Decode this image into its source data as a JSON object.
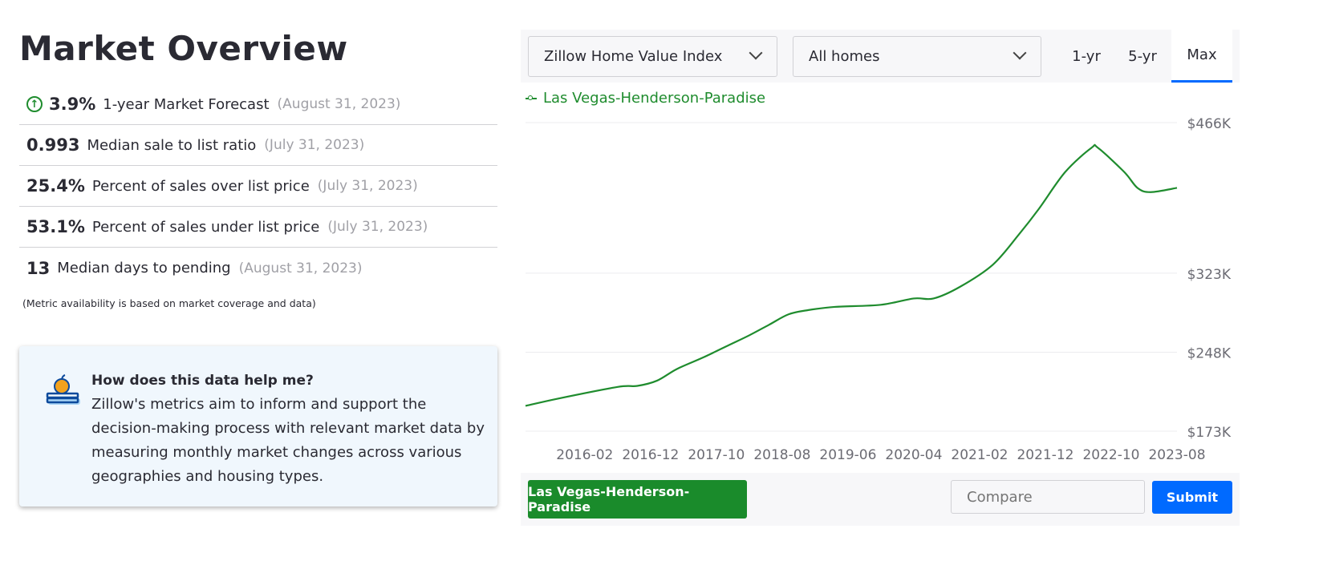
{
  "page_title": "Market Overview",
  "metrics": [
    {
      "value": "3.9%",
      "label": "1-year Market Forecast",
      "date": "(August 31, 2023)",
      "icon": "arrow-up-circle-icon"
    },
    {
      "value": "0.993",
      "label": "Median sale to list ratio",
      "date": "(July 31, 2023)"
    },
    {
      "value": "25.4%",
      "label": "Percent of sales over list price",
      "date": "(July 31, 2023)"
    },
    {
      "value": "53.1%",
      "label": "Percent of sales under list price",
      "date": "(July 31, 2023)"
    },
    {
      "value": "13",
      "label": "Median days to pending",
      "date": "(August 31, 2023)"
    }
  ],
  "note": "(Metric availability is based on market coverage and data)",
  "help": {
    "title": "How does this data help me?",
    "body": "Zillow's metrics aim to inform and support the decision-making process with relevant market data by measuring monthly market changes across various geographies and housing types.",
    "icon": "apple-on-books-icon"
  },
  "controls": {
    "metric_select": "Zillow Home Value Index",
    "home_type_select": "All homes",
    "ranges": [
      "1-yr",
      "5-yr",
      "Max"
    ],
    "active_range": "Max"
  },
  "bottom": {
    "region_button": "Las Vegas-Henderson-Paradise",
    "compare_placeholder": "Compare",
    "submit_label": "Submit"
  },
  "colors": {
    "line": "#1f8c2e",
    "accent": "#006aff",
    "region_button": "#1a8b2b"
  },
  "chart_data": {
    "type": "line",
    "title": "",
    "xlabel": "",
    "ylabel": "",
    "legend": "top-left",
    "grid": true,
    "x_ticks": [
      "2016-02",
      "2016-12",
      "2017-10",
      "2018-08",
      "2019-06",
      "2020-04",
      "2021-02",
      "2021-12",
      "2022-10",
      "2023-08"
    ],
    "y_ticks": [
      {
        "value": 466,
        "label": "$466K"
      },
      {
        "value": 323,
        "label": "$323K"
      },
      {
        "value": 248,
        "label": "$248K"
      },
      {
        "value": 173,
        "label": "$173K"
      }
    ],
    "ylim": [
      173,
      466
    ],
    "xlim": [
      "2015-05",
      "2023-08"
    ],
    "series": [
      {
        "name": "Las Vegas-Henderson-Paradise",
        "unit": "$K",
        "points": [
          [
            "2015-05",
            197
          ],
          [
            "2015-10",
            204
          ],
          [
            "2016-07",
            215
          ],
          [
            "2016-10",
            216
          ],
          [
            "2017-01",
            221
          ],
          [
            "2017-04",
            232
          ],
          [
            "2017-08",
            243
          ],
          [
            "2017-12",
            255
          ],
          [
            "2018-03",
            264
          ],
          [
            "2018-06",
            274
          ],
          [
            "2018-09",
            284
          ],
          [
            "2018-12",
            288
          ],
          [
            "2019-04",
            291
          ],
          [
            "2019-11",
            293
          ],
          [
            "2020-04",
            299
          ],
          [
            "2020-07",
            299
          ],
          [
            "2020-11",
            310
          ],
          [
            "2021-04",
            331
          ],
          [
            "2021-08",
            360
          ],
          [
            "2021-11",
            384
          ],
          [
            "2022-03",
            419
          ],
          [
            "2022-07",
            442
          ],
          [
            "2022-08",
            442
          ],
          [
            "2022-12",
            419
          ],
          [
            "2023-02",
            404
          ],
          [
            "2023-04",
            400
          ],
          [
            "2023-08",
            404
          ]
        ]
      }
    ]
  }
}
